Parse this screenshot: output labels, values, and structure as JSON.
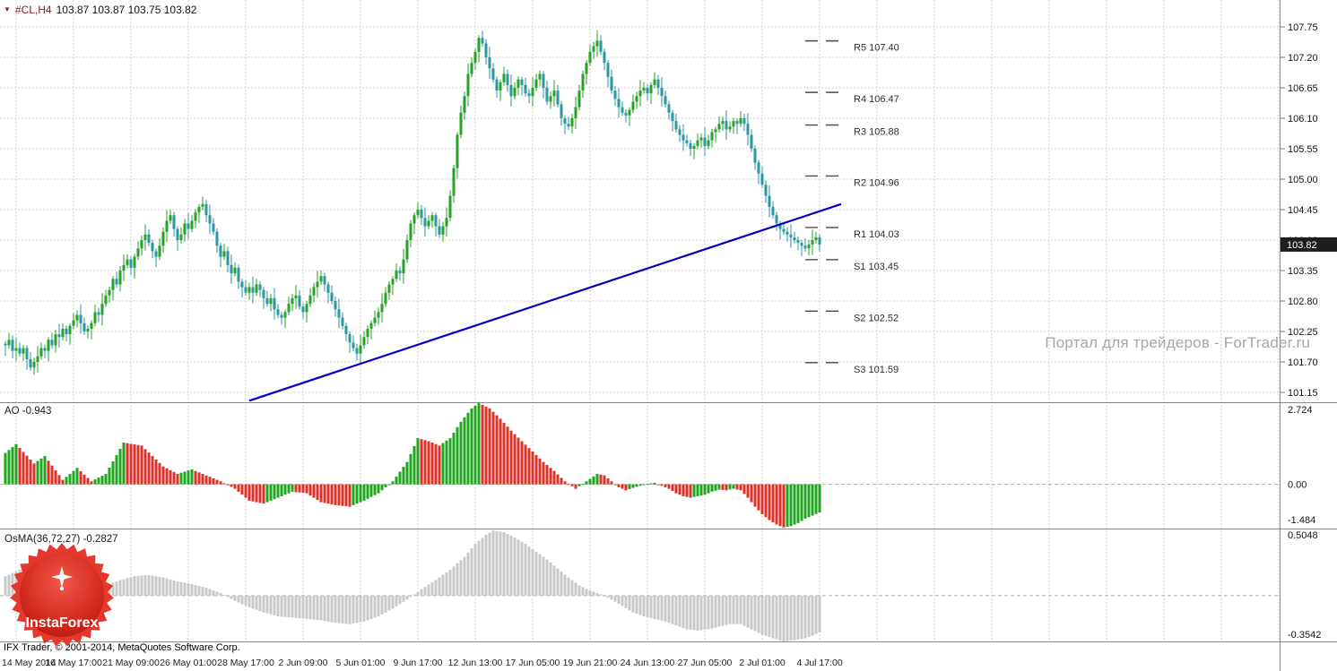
{
  "header": {
    "dropdown_icon": "▼",
    "symbol": "#CL,H4",
    "ohlc": "103.87 103.87 103.75 103.82"
  },
  "watermark": "Портал для трейдеров - ForTrader.ru",
  "status_bar": "IFX Trader, © 2001-2014, MetaQuotes Software Corp.",
  "logo": {
    "name": "InstaForex"
  },
  "colors": {
    "bull": "#27a227",
    "bear": "#2b97a0",
    "grid": "#d2d2d2",
    "zero_line": "#aeaeae",
    "ao_up": "#1ea51e",
    "ao_down": "#e03028",
    "osma": "#c9c9c9",
    "trendline": "#0000cc",
    "price_marker_bg": "#1e1e1e",
    "separator": "#8a8a8a",
    "pivot_dash": "#4a4a4a"
  },
  "chart_data": [
    {
      "type": "candlestick",
      "panel": "main",
      "symbol": "#CL",
      "timeframe": "H4",
      "current_price": 103.82,
      "price_marker_label": "103.82",
      "y_axis": {
        "min": 101.15,
        "max": 107.75,
        "step": 0.55,
        "labels": [
          "107.75",
          "107.20",
          "106.65",
          "106.10",
          "105.55",
          "105.00",
          "104.45",
          "103.90",
          "103.35",
          "102.80",
          "102.25",
          "101.70",
          "101.15"
        ]
      },
      "x_labels": [
        "14 May 2014",
        "16 May 17:00",
        "21 May 09:00",
        "26 May 01:00",
        "28 May 17:00",
        "2 Jun 09:00",
        "5 Jun 01:00",
        "9 Jun 17:00",
        "12 Jun 13:00",
        "17 Jun 05:00",
        "19 Jun 21:00",
        "24 Jun 13:00",
        "27 Jun 05:00",
        "2 Jul 01:00",
        "4 Jul 17:00"
      ],
      "pivot_levels": [
        {
          "name": "R5",
          "price": 107.4
        },
        {
          "name": "R4",
          "price": 106.47
        },
        {
          "name": "R3",
          "price": 105.88
        },
        {
          "name": "R2",
          "price": 104.96
        },
        {
          "name": "R1",
          "price": 104.03
        },
        {
          "name": "S1",
          "price": 103.45
        },
        {
          "name": "S2",
          "price": 102.52
        },
        {
          "name": "S3",
          "price": 101.59
        }
      ],
      "trendline": {
        "from_index": 68,
        "from_price": 101.0,
        "to_index": 233,
        "to_price": 104.55
      },
      "closes": [
        102.0,
        102.1,
        101.9,
        101.95,
        101.85,
        101.95,
        101.75,
        101.6,
        101.7,
        101.8,
        101.95,
        101.9,
        102.1,
        102.0,
        102.2,
        102.15,
        102.3,
        102.2,
        102.35,
        102.45,
        102.55,
        102.4,
        102.25,
        102.3,
        102.4,
        102.6,
        102.55,
        102.75,
        102.9,
        103.0,
        103.2,
        103.1,
        103.35,
        103.45,
        103.55,
        103.4,
        103.6,
        103.75,
        103.9,
        104.0,
        103.85,
        103.7,
        103.6,
        103.8,
        104.05,
        104.25,
        104.35,
        104.1,
        103.9,
        104.0,
        104.2,
        104.1,
        104.25,
        104.4,
        104.5,
        104.55,
        104.35,
        104.2,
        104.05,
        103.8,
        103.6,
        103.7,
        103.45,
        103.3,
        103.4,
        103.15,
        103.05,
        102.95,
        103.05,
        102.95,
        103.1,
        103.0,
        102.85,
        102.75,
        102.85,
        102.65,
        102.55,
        102.5,
        102.6,
        102.75,
        102.85,
        102.9,
        102.7,
        102.6,
        102.75,
        102.9,
        103.05,
        103.15,
        103.25,
        103.1,
        102.95,
        102.8,
        102.65,
        102.5,
        102.35,
        102.2,
        102.05,
        101.95,
        101.85,
        102.0,
        102.15,
        102.3,
        102.4,
        102.5,
        102.6,
        102.75,
        102.95,
        103.1,
        103.2,
        103.35,
        103.3,
        103.55,
        103.9,
        104.2,
        104.35,
        104.45,
        104.3,
        104.15,
        104.25,
        104.35,
        104.15,
        104.0,
        104.15,
        104.3,
        104.7,
        105.2,
        105.8,
        106.2,
        106.5,
        106.9,
        107.1,
        107.3,
        107.55,
        107.45,
        107.2,
        107.0,
        106.8,
        106.6,
        106.75,
        106.9,
        106.7,
        106.5,
        106.65,
        106.8,
        106.7,
        106.55,
        106.5,
        106.65,
        106.8,
        106.9,
        106.65,
        106.4,
        106.5,
        106.6,
        106.35,
        106.1,
        106.0,
        105.95,
        106.1,
        106.3,
        106.6,
        106.9,
        107.1,
        107.3,
        107.4,
        107.5,
        107.3,
        107.1,
        106.85,
        106.6,
        106.45,
        106.3,
        106.2,
        106.15,
        106.25,
        106.4,
        106.5,
        106.6,
        106.65,
        106.55,
        106.7,
        106.8,
        106.65,
        106.5,
        106.35,
        106.2,
        106.05,
        105.9,
        105.8,
        105.7,
        105.65,
        105.55,
        105.6,
        105.7,
        105.75,
        105.6,
        105.7,
        105.85,
        105.9,
        106.0,
        106.05,
        105.9,
        105.95,
        106.05,
        106.0,
        106.1,
        106.0,
        105.8,
        105.55,
        105.3,
        105.1,
        104.9,
        104.7,
        104.5,
        104.35,
        104.2,
        104.1,
        104.05,
        104.0,
        103.95,
        103.9,
        103.85,
        103.8,
        103.75,
        103.82,
        103.9,
        103.95,
        103.82
      ]
    },
    {
      "type": "bar",
      "panel": "indicator-1",
      "name": "AO",
      "title": "AO -0.943",
      "current": -0.943,
      "y_axis": {
        "max": 2.724,
        "min": -1.484,
        "labels": [
          "2.724",
          "0.00",
          "-1.484"
        ]
      },
      "anchor_points": [
        [
          0,
          1.05
        ],
        [
          3,
          1.35
        ],
        [
          8,
          0.7
        ],
        [
          11,
          0.95
        ],
        [
          16,
          0.15
        ],
        [
          20,
          0.55
        ],
        [
          24,
          0.1
        ],
        [
          28,
          0.35
        ],
        [
          33,
          1.4
        ],
        [
          38,
          1.3
        ],
        [
          44,
          0.6
        ],
        [
          48,
          0.35
        ],
        [
          52,
          0.5
        ],
        [
          56,
          0.3
        ],
        [
          60,
          0.1
        ],
        [
          64,
          -0.15
        ],
        [
          68,
          -0.55
        ],
        [
          72,
          -0.65
        ],
        [
          76,
          -0.45
        ],
        [
          80,
          -0.25
        ],
        [
          84,
          -0.3
        ],
        [
          88,
          -0.6
        ],
        [
          92,
          -0.7
        ],
        [
          96,
          -0.75
        ],
        [
          100,
          -0.55
        ],
        [
          104,
          -0.3
        ],
        [
          108,
          0.1
        ],
        [
          112,
          0.75
        ],
        [
          115,
          1.55
        ],
        [
          118,
          1.45
        ],
        [
          121,
          1.3
        ],
        [
          124,
          1.55
        ],
        [
          127,
          2.1
        ],
        [
          130,
          2.55
        ],
        [
          132,
          2.724
        ],
        [
          135,
          2.55
        ],
        [
          138,
          2.2
        ],
        [
          141,
          1.8
        ],
        [
          144,
          1.45
        ],
        [
          147,
          1.1
        ],
        [
          150,
          0.75
        ],
        [
          153,
          0.45
        ],
        [
          156,
          0.1
        ],
        [
          159,
          -0.15
        ],
        [
          162,
          0.1
        ],
        [
          165,
          0.35
        ],
        [
          167,
          0.3
        ],
        [
          169,
          0.1
        ],
        [
          171,
          -0.1
        ],
        [
          173,
          -0.2
        ],
        [
          175,
          -0.12
        ],
        [
          177,
          -0.05
        ],
        [
          179,
          0.02
        ],
        [
          181,
          0.05
        ],
        [
          183,
          -0.05
        ],
        [
          185,
          -0.15
        ],
        [
          187,
          -0.3
        ],
        [
          189,
          -0.4
        ],
        [
          191,
          -0.45
        ],
        [
          193,
          -0.4
        ],
        [
          195,
          -0.35
        ],
        [
          197,
          -0.25
        ],
        [
          199,
          -0.18
        ],
        [
          201,
          -0.2
        ],
        [
          203,
          -0.15
        ],
        [
          205,
          -0.2
        ],
        [
          207,
          -0.45
        ],
        [
          209,
          -0.75
        ],
        [
          211,
          -1.0
        ],
        [
          213,
          -1.2
        ],
        [
          215,
          -1.35
        ],
        [
          217,
          -1.45
        ],
        [
          219,
          -1.4
        ],
        [
          221,
          -1.3
        ],
        [
          223,
          -1.15
        ],
        [
          225,
          -1.05
        ],
        [
          227,
          -0.943
        ]
      ]
    },
    {
      "type": "bar",
      "panel": "indicator-2",
      "name": "OsMA",
      "title": "OsMA(36,72,27) -0.2827",
      "current": -0.2827,
      "y_axis": {
        "max": 0.5048,
        "min": -0.3542,
        "labels": [
          "0.5048",
          "-0.3542"
        ]
      },
      "anchor_points": [
        [
          0,
          0.15
        ],
        [
          4,
          0.2
        ],
        [
          8,
          0.22
        ],
        [
          12,
          0.18
        ],
        [
          16,
          0.12
        ],
        [
          20,
          0.08
        ],
        [
          24,
          0.05
        ],
        [
          28,
          0.08
        ],
        [
          32,
          0.12
        ],
        [
          36,
          0.15
        ],
        [
          40,
          0.16
        ],
        [
          44,
          0.14
        ],
        [
          48,
          0.11
        ],
        [
          52,
          0.09
        ],
        [
          56,
          0.06
        ],
        [
          60,
          0.02
        ],
        [
          64,
          -0.04
        ],
        [
          68,
          -0.09
        ],
        [
          72,
          -0.13
        ],
        [
          76,
          -0.16
        ],
        [
          80,
          -0.17
        ],
        [
          84,
          -0.18
        ],
        [
          88,
          -0.19
        ],
        [
          92,
          -0.21
        ],
        [
          96,
          -0.22
        ],
        [
          100,
          -0.2
        ],
        [
          104,
          -0.16
        ],
        [
          108,
          -0.1
        ],
        [
          112,
          -0.03
        ],
        [
          116,
          0.05
        ],
        [
          120,
          0.12
        ],
        [
          124,
          0.2
        ],
        [
          128,
          0.3
        ],
        [
          131,
          0.4
        ],
        [
          134,
          0.47
        ],
        [
          136,
          0.5048
        ],
        [
          139,
          0.49
        ],
        [
          142,
          0.45
        ],
        [
          145,
          0.4
        ],
        [
          148,
          0.34
        ],
        [
          151,
          0.28
        ],
        [
          154,
          0.21
        ],
        [
          157,
          0.14
        ],
        [
          160,
          0.08
        ],
        [
          163,
          0.04
        ],
        [
          166,
          0.01
        ],
        [
          169,
          -0.03
        ],
        [
          172,
          -0.08
        ],
        [
          175,
          -0.13
        ],
        [
          178,
          -0.16
        ],
        [
          181,
          -0.18
        ],
        [
          184,
          -0.2
        ],
        [
          187,
          -0.23
        ],
        [
          190,
          -0.26
        ],
        [
          193,
          -0.27
        ],
        [
          196,
          -0.26
        ],
        [
          199,
          -0.24
        ],
        [
          202,
          -0.22
        ],
        [
          205,
          -0.22
        ],
        [
          208,
          -0.26
        ],
        [
          211,
          -0.3
        ],
        [
          214,
          -0.33
        ],
        [
          217,
          -0.3542
        ],
        [
          220,
          -0.345
        ],
        [
          223,
          -0.33
        ],
        [
          225,
          -0.31
        ],
        [
          227,
          -0.2827
        ]
      ]
    }
  ]
}
